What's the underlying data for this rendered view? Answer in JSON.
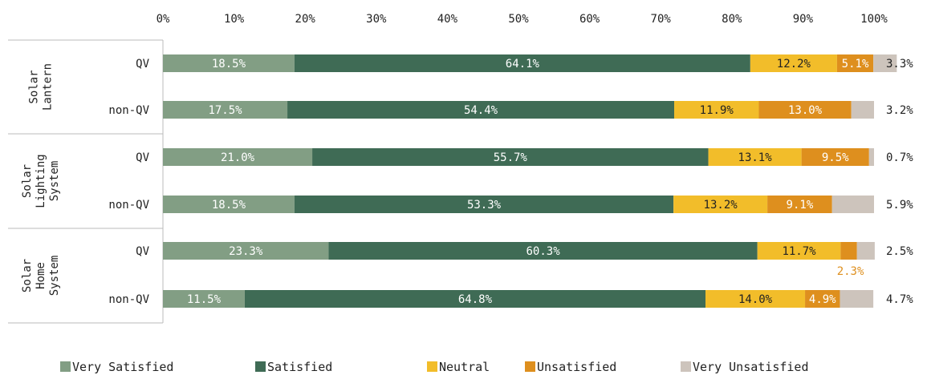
{
  "chart_data": {
    "type": "bar",
    "orientation": "horizontal",
    "stacked": true,
    "xlim": [
      0,
      100
    ],
    "x_ticks": [
      "0%",
      "10%",
      "20%",
      "30%",
      "40%",
      "50%",
      "60%",
      "70%",
      "80%",
      "90%",
      "100%"
    ],
    "groups": [
      {
        "label_lines": [
          "Solar",
          "Lantern"
        ],
        "rows": [
          0,
          1
        ]
      },
      {
        "label_lines": [
          "Solar",
          "Lighting",
          "System"
        ],
        "rows": [
          2,
          3
        ]
      },
      {
        "label_lines": [
          "Solar",
          "Home",
          "System"
        ],
        "rows": [
          4,
          5
        ]
      }
    ],
    "categories": [
      "QV",
      "non-QV",
      "QV",
      "non-QV",
      "QV",
      "non-QV"
    ],
    "series": [
      {
        "name": "Very Satisfied",
        "color": "#829e84",
        "label_color": "#ffffff",
        "values": [
          18.5,
          17.5,
          21.0,
          18.5,
          23.3,
          11.5
        ],
        "labels": [
          "18.5%",
          "17.5%",
          "21.0%",
          "18.5%",
          "23.3%",
          "11.5%"
        ]
      },
      {
        "name": "Satisfied",
        "color": "#3f6b55",
        "label_color": "#ffffff",
        "values": [
          64.1,
          54.4,
          55.7,
          53.3,
          60.3,
          64.8
        ],
        "labels": [
          "64.1%",
          "54.4%",
          "55.7%",
          "53.3%",
          "60.3%",
          "64.8%"
        ]
      },
      {
        "name": "Neutral",
        "color": "#f2bd2a",
        "label_color": "#222222",
        "values": [
          12.2,
          11.9,
          13.1,
          13.2,
          11.7,
          14.0
        ],
        "labels": [
          "12.2%",
          "11.9%",
          "13.1%",
          "13.2%",
          "11.7%",
          "14.0%"
        ]
      },
      {
        "name": "Unsatisfied",
        "color": "#de8f1e",
        "label_color": "#ffffff",
        "values": [
          5.1,
          13.0,
          9.5,
          9.1,
          2.3,
          4.9
        ],
        "labels": [
          "5.1%",
          "13.0%",
          "9.5%",
          "9.1%",
          "2.3%",
          "4.9%"
        ]
      },
      {
        "name": "Very Unsatisfied",
        "color": "#cdc4bc",
        "label_color": "#222222",
        "values": [
          3.3,
          3.2,
          0.7,
          5.9,
          2.5,
          4.7
        ],
        "labels": [
          "3.3%",
          "3.2%",
          "0.7%",
          "5.9%",
          "2.5%",
          "4.7%"
        ]
      }
    ],
    "outside_labels": {
      "Unsatisfied": {
        "4": "2.3%"
      }
    },
    "right_labels_series": "Very Unsatisfied",
    "legend": "bottom"
  }
}
